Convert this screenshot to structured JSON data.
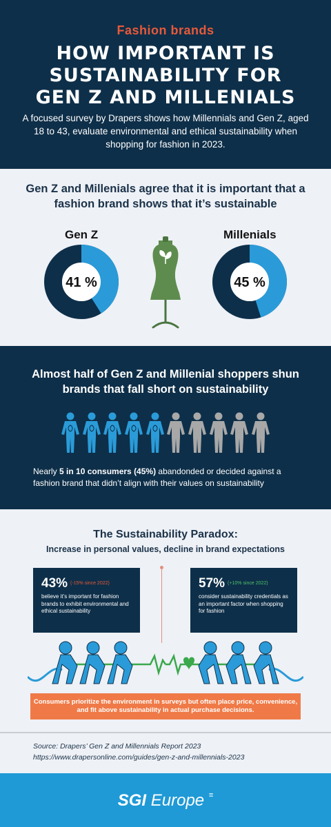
{
  "header": {
    "eyebrow": "Fashion brands",
    "title_line1": "HOW IMPORTANT IS",
    "title_line2": "SUSTAINABILITY FOR",
    "title_line3": "GEN Z AND MILLENIALS",
    "intro": "A focused survey by Drapers shows how Millennials and Gen Z, aged 18 to 43, evaluate environmental and ethical sustainability when shopping for fashion in 2023."
  },
  "section1": {
    "heading": "Gen Z and Millenials agree that it is important that a fashion brand shows that it’s sustainable",
    "genz": {
      "label": "Gen Z",
      "value_text": "41 %",
      "value": 41
    },
    "millenials": {
      "label": "Millenials",
      "value_text": "45 %",
      "value": 45
    }
  },
  "section2": {
    "heading": "Almost half of Gen Z and Millenial shoppers shun brands that fall short on sustainability",
    "people_total": 10,
    "people_highlighted": 5,
    "text_prefix": "Nearly ",
    "text_bold": "5 in 10 consumers (45%)",
    "text_suffix": " abandonded or decided against a fashion brand that didn’t align with their values on sustainability"
  },
  "section3": {
    "title": "The Sustainability Paradox:",
    "subtitle": "Increase in personal values, decline in brand expectations",
    "left": {
      "value": "43%",
      "change": "(-15% since 2022)",
      "description": "believe it’s important for fashion brands to exhibit environmental and ethical sustainability"
    },
    "right": {
      "value": "57%",
      "change": "(+10% since 2022)",
      "description": "consider sustainability credentials as an important factor when shopping for fashion"
    },
    "banner": "Consumers prioritize the environment in surveys but often place price, convenience, and fit above sustainability in actual purchase decisions."
  },
  "source": {
    "line1": "Source: Drapers’ Gen Z and Millennials Report 2023",
    "line2": "https://www.drapersonline.com/guides/gen-z-and-millennials-2023"
  },
  "footer": {
    "logo_bold": "SGI",
    "logo_light": "Europe"
  },
  "colors": {
    "navy": "#0e2f49",
    "accent_orange": "#e8593a",
    "blue": "#2a9bd8",
    "grey_person": "#a8a8a8",
    "mannequin_green": "#5e8c4e",
    "negative_red": "#e8593a",
    "positive_green": "#4fc36a",
    "footer_blue": "#1f9ad6"
  },
  "icons": [
    "mannequin-icon",
    "leaf-icon",
    "person-icon",
    "tug-of-war-icon",
    "heart-icon"
  ]
}
